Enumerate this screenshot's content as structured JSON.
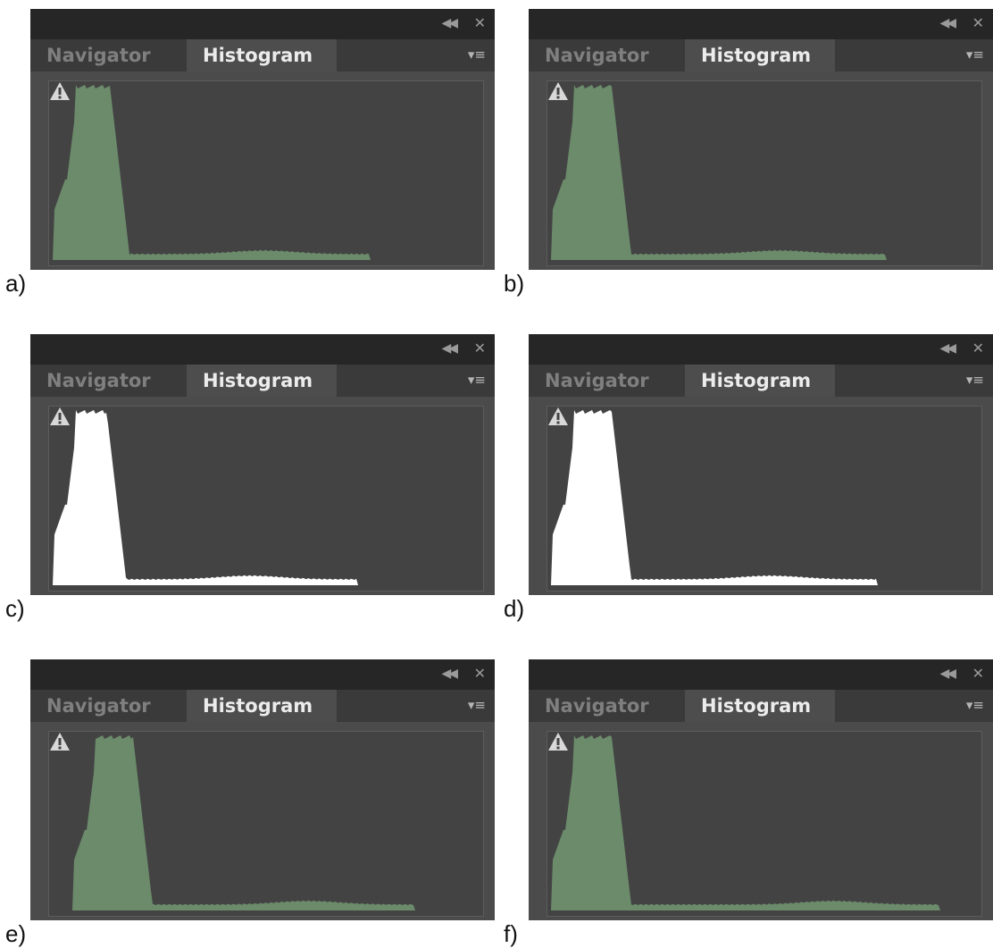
{
  "panel": {
    "tabs": [
      {
        "label": "Navigator",
        "active": false
      },
      {
        "label": "Histogram",
        "active": true
      }
    ],
    "collapse_icon": "double-chevron-left-icon",
    "close_icon": "close-icon",
    "menu_icon": "panel-menu-icon",
    "warning_icon": "warning-triangle-icon"
  },
  "panels": [
    {
      "label": "a)",
      "fill_color": "#6b8b6b"
    },
    {
      "label": "b)",
      "fill_color": "#6b8b6b"
    },
    {
      "label": "c)",
      "fill_color": "#ffffff"
    },
    {
      "label": "d)",
      "fill_color": "#ffffff"
    },
    {
      "label": "e)",
      "fill_color": "#6b8b6b"
    },
    {
      "label": "f)",
      "fill_color": "#6b8b6b"
    }
  ]
}
